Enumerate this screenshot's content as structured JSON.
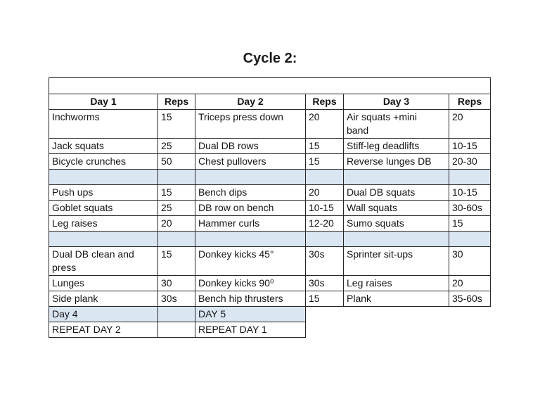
{
  "page": {
    "title": "Cycle 2:"
  },
  "table": {
    "header": [
      "Day 1",
      "Reps",
      "Day 2",
      "Reps",
      "Day 3",
      "Reps"
    ],
    "rows": [
      {
        "kind": "data",
        "cells": [
          "Inchworms",
          "15",
          "Triceps press down",
          "20",
          "Air squats +mini\nband",
          "20"
        ]
      },
      {
        "kind": "data",
        "cells": [
          "Jack squats",
          "25",
          "Dual DB rows",
          "15",
          "Stiff-leg deadlifts",
          "10-15"
        ]
      },
      {
        "kind": "data",
        "cells": [
          "Bicycle crunches",
          "50",
          "Chest pullovers",
          "15",
          "Reverse lunges DB",
          "20-30"
        ]
      },
      {
        "kind": "spacer",
        "cells": [
          "",
          "",
          "",
          "",
          "",
          ""
        ]
      },
      {
        "kind": "data",
        "cells": [
          "Push ups",
          "15",
          "Bench dips",
          "20",
          "Dual DB squats",
          "10-15"
        ]
      },
      {
        "kind": "data",
        "cells": [
          "Goblet squats",
          "25",
          "DB row on bench",
          "10-15",
          "Wall squats",
          "30-60s"
        ]
      },
      {
        "kind": "data",
        "cells": [
          "Leg raises",
          "20",
          "Hammer curls",
          "12-20",
          "Sumo squats",
          "15"
        ]
      },
      {
        "kind": "spacer",
        "cells": [
          "",
          "",
          "",
          "",
          "",
          ""
        ]
      },
      {
        "kind": "data",
        "cells": [
          "Dual DB clean and\npress",
          "15",
          "Donkey kicks 45°",
          "30s",
          "Sprinter sit-ups",
          "30"
        ]
      },
      {
        "kind": "data",
        "cells": [
          "Lunges",
          "30",
          "Donkey kicks 90⁰",
          "30s",
          "Leg raises",
          "20"
        ]
      },
      {
        "kind": "data",
        "cells": [
          "Side plank",
          "30s",
          "Bench hip thrusters",
          "15",
          "Plank",
          "35-60s"
        ]
      },
      {
        "kind": "partial-highlight",
        "cells": [
          "Day 4",
          "",
          "DAY 5"
        ]
      },
      {
        "kind": "partial",
        "cells": [
          "REPEAT DAY 2",
          "",
          "REPEAT DAY 1"
        ]
      }
    ],
    "colors": {
      "highlight_bg": "#dbe6f3",
      "border": "#262626"
    }
  }
}
